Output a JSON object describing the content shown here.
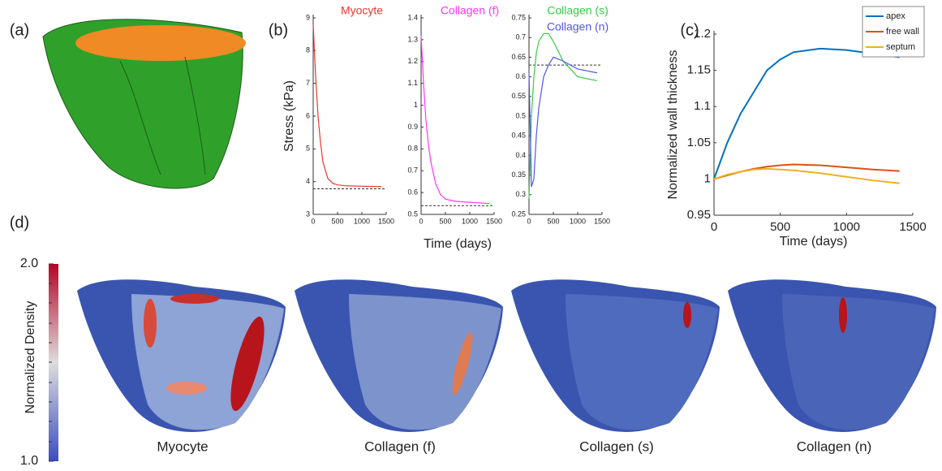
{
  "panel_labels": [
    "(a)",
    "(b)",
    "(c)",
    "(d)"
  ],
  "chart_data": [
    {
      "type": "line",
      "ylabel": "Stress (kPa)",
      "legend": "top",
      "x": [
        0,
        50,
        100,
        150,
        200,
        300,
        400,
        500,
        700,
        1000,
        1400
      ],
      "series": [
        {
          "name": "Myocyte",
          "color": "#e8382f",
          "values": [
            8.8,
            7.2,
            6.0,
            5.2,
            4.6,
            4.1,
            3.95,
            3.9,
            3.87,
            3.86,
            3.85
          ]
        }
      ],
      "reference_line": 3.78,
      "xlim": [
        0,
        1500
      ],
      "xticks": [
        0,
        500,
        1000,
        1500
      ],
      "ylim": [
        3,
        9
      ],
      "yticks": [
        3,
        4,
        5,
        6,
        7,
        8,
        9
      ]
    },
    {
      "type": "line",
      "xlabel": "Time (days)",
      "legend": "top",
      "x": [
        0,
        50,
        100,
        150,
        200,
        300,
        400,
        500,
        700,
        1000,
        1400
      ],
      "series": [
        {
          "name": "Collagen (f)",
          "color": "#ff33ff",
          "values": [
            1.32,
            1.1,
            0.93,
            0.82,
            0.74,
            0.64,
            0.59,
            0.57,
            0.56,
            0.555,
            0.55
          ]
        }
      ],
      "reference_line": 0.54,
      "xlim": [
        0,
        1500
      ],
      "xticks": [
        0,
        500,
        1000,
        1500
      ],
      "ylim": [
        0.5,
        1.4
      ],
      "yticks": [
        0.5,
        0.6,
        0.7,
        0.8,
        0.9,
        1,
        1.1,
        1.2,
        1.3,
        1.4
      ]
    },
    {
      "type": "line",
      "legend": "top",
      "x": [
        0,
        50,
        100,
        150,
        200,
        300,
        400,
        500,
        700,
        1000,
        1400
      ],
      "series": [
        {
          "name": "Collagen (s)",
          "color": "#33cc44",
          "values": [
            0.29,
            0.5,
            0.6,
            0.66,
            0.69,
            0.71,
            0.71,
            0.69,
            0.64,
            0.6,
            0.59
          ]
        },
        {
          "name": "Collagen (n)",
          "color": "#5555ee",
          "values": [
            0.61,
            0.32,
            0.34,
            0.45,
            0.52,
            0.6,
            0.63,
            0.65,
            0.64,
            0.62,
            0.61
          ]
        }
      ],
      "reference_line": 0.63,
      "xlim": [
        0,
        1500
      ],
      "xticks": [
        0,
        500,
        1000,
        1500
      ],
      "ylim": [
        0.25,
        0.75
      ],
      "yticks": [
        0.25,
        0.3,
        0.35,
        0.4,
        0.45,
        0.5,
        0.55,
        0.6,
        0.65,
        0.7,
        0.75
      ]
    },
    {
      "type": "line",
      "xlabel": "Time (days)",
      "ylabel": "Normalized wall thickness",
      "legend": "upper right",
      "x": [
        0,
        100,
        200,
        300,
        400,
        500,
        600,
        800,
        1000,
        1200,
        1400
      ],
      "series": [
        {
          "name": "apex",
          "color": "#0072bd",
          "values": [
            1,
            1.05,
            1.09,
            1.12,
            1.15,
            1.165,
            1.175,
            1.18,
            1.178,
            1.173,
            1.168
          ]
        },
        {
          "name": "free wall",
          "color": "#d95319",
          "values": [
            1,
            1.005,
            1.01,
            1.014,
            1.017,
            1.019,
            1.02,
            1.019,
            1.016,
            1.013,
            1.011
          ]
        },
        {
          "name": "septum",
          "color": "#edb120",
          "values": [
            1,
            1.006,
            1.01,
            1.013,
            1.014,
            1.013,
            1.012,
            1.008,
            1.003,
            0.998,
            0.994
          ]
        }
      ],
      "xlim": [
        0,
        1500
      ],
      "xticks": [
        0,
        500,
        1000,
        1500
      ],
      "ylim": [
        0.95,
        1.2
      ],
      "yticks": [
        0.95,
        1,
        1.05,
        1.1,
        1.15,
        1.2
      ]
    }
  ],
  "colorbar": {
    "label": "Normalized Density",
    "lim": [
      1,
      2
    ],
    "ticks": [
      {
        "value": 1,
        "label": "1.0"
      },
      {
        "value": 2,
        "label": "2.0"
      }
    ]
  },
  "heart_labels": [
    "Myocyte",
    "Collagen (f)",
    "Collagen (s)",
    "Collagen (n)"
  ]
}
